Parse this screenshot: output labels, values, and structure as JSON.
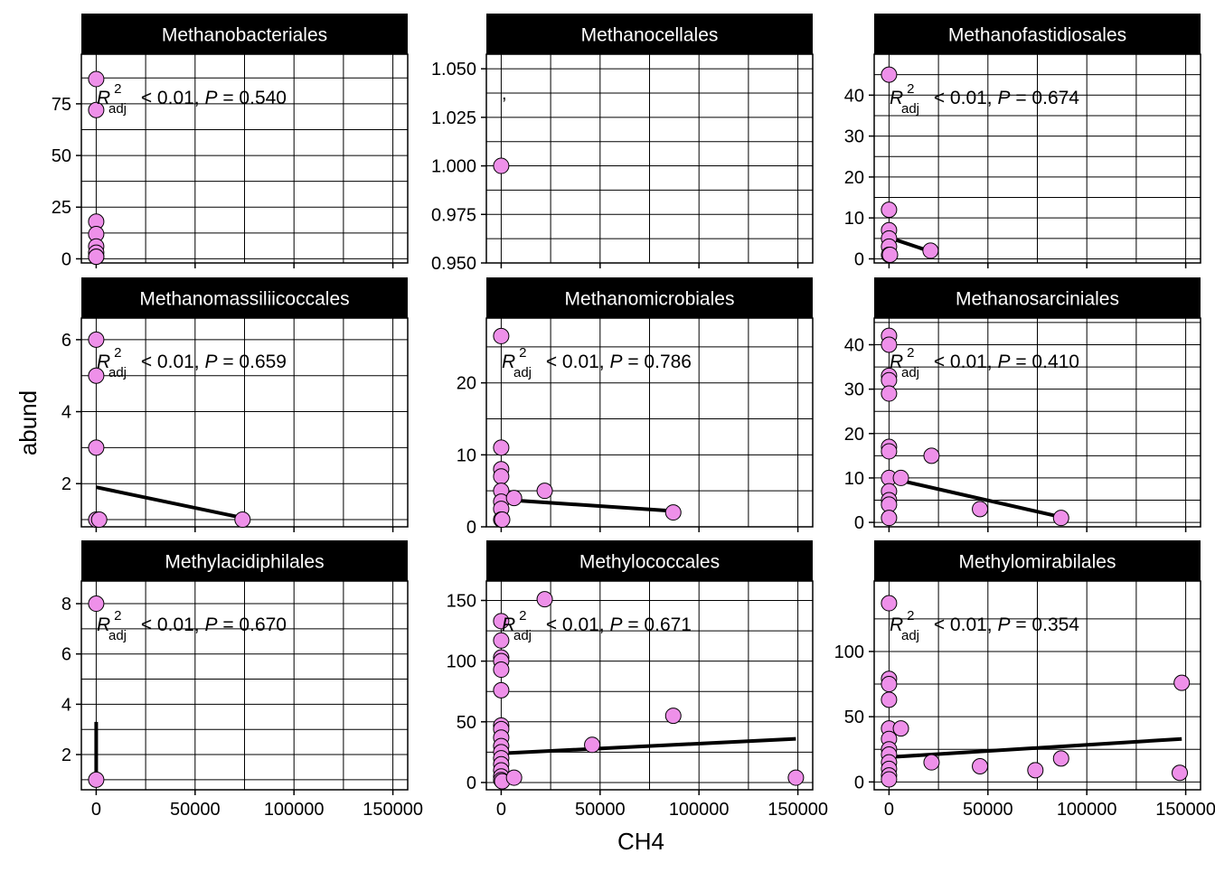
{
  "xlabel": "CH4",
  "ylabel": "abund",
  "colors": {
    "point_fill": "#EE90E9",
    "point_stroke": "#000000",
    "strip_bg": "#000000",
    "strip_text": "#FFFFFF",
    "line": "#000000",
    "grid": "#000000"
  },
  "chart_data": [
    {
      "type": "scatter",
      "title": "Methanobacteriales",
      "annotation": {
        "r2": "< 0.01,",
        "p_label": "P",
        "p_value": "= 0.540"
      },
      "xlim": [
        -7500,
        157500
      ],
      "ylim": [
        -2,
        99
      ],
      "xticks": [
        0,
        50000,
        100000,
        150000
      ],
      "xticklabels": [
        "0",
        "50000",
        "100000",
        "150000"
      ],
      "yticks": [
        0,
        25,
        50,
        75
      ],
      "yticklabels": [
        "0",
        "25",
        "50",
        "75"
      ],
      "points": [
        [
          0,
          87
        ],
        [
          0,
          72
        ],
        [
          0,
          18
        ],
        [
          0,
          12
        ],
        [
          0,
          6
        ],
        [
          0,
          3
        ],
        [
          0,
          1
        ],
        [
          0,
          1
        ]
      ],
      "fit": [
        [
          0,
          18
        ],
        [
          0,
          3
        ]
      ]
    },
    {
      "type": "scatter",
      "title": "Methanocellales",
      "annotation": {
        "r2": "",
        "p_label": "",
        "p_value": "",
        "mark": ","
      },
      "xlim": [
        -7500,
        157500
      ],
      "ylim": [
        0.95,
        1.0575
      ],
      "xticks": [
        0,
        50000,
        100000,
        150000
      ],
      "xticklabels": [
        "0",
        "50000",
        "100000",
        "150000"
      ],
      "yticks": [
        0.95,
        0.975,
        1.0,
        1.025,
        1.05
      ],
      "yticklabels": [
        "0.950",
        "0.975",
        "1.000",
        "1.025",
        "1.050"
      ],
      "points": [
        [
          0,
          1.0
        ]
      ],
      "fit": []
    },
    {
      "type": "scatter",
      "title": "Methanofastidiosales",
      "annotation": {
        "r2": "< 0.01,",
        "p_label": "P",
        "p_value": "= 0.674"
      },
      "xlim": [
        -7500,
        157500
      ],
      "ylim": [
        -1,
        50
      ],
      "xticks": [
        0,
        50000,
        100000,
        150000
      ],
      "xticklabels": [
        "0",
        "50000",
        "100000",
        "150000"
      ],
      "yticks": [
        0,
        10,
        20,
        30,
        40
      ],
      "yticklabels": [
        "0",
        "10",
        "20",
        "30",
        "40"
      ],
      "points": [
        [
          0,
          45
        ],
        [
          0,
          12
        ],
        [
          0,
          7
        ],
        [
          0,
          5
        ],
        [
          0,
          3
        ],
        [
          0,
          1
        ],
        [
          500,
          1
        ],
        [
          21000,
          2
        ]
      ],
      "fit": [
        [
          0,
          5.2
        ],
        [
          21000,
          1.8
        ]
      ]
    },
    {
      "type": "scatter",
      "title": "Methanomassiliicoccales",
      "annotation": {
        "r2": "< 0.01,",
        "p_label": "P",
        "p_value": "= 0.659"
      },
      "xlim": [
        -7500,
        157500
      ],
      "ylim": [
        0.8,
        6.6
      ],
      "xticks": [
        0,
        50000,
        100000,
        150000
      ],
      "xticklabels": [
        "0",
        "50000",
        "100000",
        "150000"
      ],
      "yticks": [
        2,
        4,
        6
      ],
      "yticklabels": [
        "2",
        "4",
        "6"
      ],
      "points": [
        [
          0,
          6
        ],
        [
          0,
          5
        ],
        [
          0,
          3
        ],
        [
          0,
          1
        ],
        [
          1500,
          1
        ],
        [
          74000,
          1
        ]
      ],
      "fit": [
        [
          0,
          1.9
        ],
        [
          74000,
          1.05
        ]
      ]
    },
    {
      "type": "scatter",
      "title": "Methanomicrobiales",
      "annotation": {
        "r2": "< 0.01,",
        "p_label": "P",
        "p_value": "= 0.786"
      },
      "xlim": [
        -7500,
        157500
      ],
      "ylim": [
        0,
        29
      ],
      "xticks": [
        0,
        50000,
        100000,
        150000
      ],
      "xticklabels": [
        "0",
        "50000",
        "100000",
        "150000"
      ],
      "yticks": [
        0,
        10,
        20
      ],
      "yticklabels": [
        "0",
        "10",
        "20"
      ],
      "points": [
        [
          0,
          26.5
        ],
        [
          0,
          11
        ],
        [
          0,
          8
        ],
        [
          0,
          7
        ],
        [
          0,
          5
        ],
        [
          0,
          3.5
        ],
        [
          0,
          2.5
        ],
        [
          0,
          1
        ],
        [
          500,
          1
        ],
        [
          6500,
          4
        ],
        [
          22000,
          5
        ],
        [
          87000,
          2
        ]
      ],
      "fit": [
        [
          0,
          3.8
        ],
        [
          87000,
          2.2
        ]
      ]
    },
    {
      "type": "scatter",
      "title": "Methanosarciniales",
      "annotation": {
        "r2": "< 0.01,",
        "p_label": "P",
        "p_value": "= 0.410"
      },
      "xlim": [
        -7500,
        157500
      ],
      "ylim": [
        -1,
        46
      ],
      "xticks": [
        0,
        50000,
        100000,
        150000
      ],
      "xticklabels": [
        "0",
        "50000",
        "100000",
        "150000"
      ],
      "yticks": [
        0,
        10,
        20,
        30,
        40
      ],
      "yticklabels": [
        "0",
        "10",
        "20",
        "30",
        "40"
      ],
      "points": [
        [
          0,
          42
        ],
        [
          0,
          40
        ],
        [
          0,
          33
        ],
        [
          0,
          32
        ],
        [
          0,
          29
        ],
        [
          0,
          17
        ],
        [
          0,
          16
        ],
        [
          0,
          10
        ],
        [
          0,
          7
        ],
        [
          0,
          5
        ],
        [
          0,
          4
        ],
        [
          0,
          1
        ],
        [
          6000,
          10
        ],
        [
          21500,
          15
        ],
        [
          46000,
          3
        ],
        [
          87000,
          1
        ]
      ],
      "fit": [
        [
          0,
          10
        ],
        [
          87000,
          1.2
        ]
      ]
    },
    {
      "type": "scatter",
      "title": "Methylacidiphilales",
      "annotation": {
        "r2": "< 0.01,",
        "p_label": "P",
        "p_value": "= 0.670"
      },
      "xlim": [
        -7500,
        157500
      ],
      "ylim": [
        0.6,
        8.9
      ],
      "xticks": [
        0,
        50000,
        100000,
        150000
      ],
      "xticklabels": [
        "0",
        "50000",
        "100000",
        "150000"
      ],
      "yticks": [
        2,
        4,
        6,
        8
      ],
      "yticklabels": [
        "2",
        "4",
        "6",
        "8"
      ],
      "points": [
        [
          0,
          8
        ],
        [
          0,
          1
        ]
      ],
      "fit": [
        [
          0,
          3.3
        ],
        [
          0,
          1
        ]
      ]
    },
    {
      "type": "scatter",
      "title": "Methylococcales",
      "annotation": {
        "r2": "< 0.01,",
        "p_label": "P",
        "p_value": "= 0.671"
      },
      "xlim": [
        -7500,
        157500
      ],
      "ylim": [
        -6,
        166
      ],
      "xticks": [
        0,
        50000,
        100000,
        150000
      ],
      "xticklabels": [
        "0",
        "50000",
        "100000",
        "150000"
      ],
      "yticks": [
        0,
        50,
        100,
        150
      ],
      "yticklabels": [
        "0",
        "50",
        "100",
        "150"
      ],
      "points": [
        [
          0,
          133
        ],
        [
          0,
          117
        ],
        [
          0,
          103
        ],
        [
          0,
          100
        ],
        [
          0,
          93
        ],
        [
          0,
          76
        ],
        [
          0,
          47
        ],
        [
          0,
          44
        ],
        [
          0,
          37
        ],
        [
          0,
          30
        ],
        [
          0,
          25
        ],
        [
          0,
          20
        ],
        [
          0,
          15
        ],
        [
          0,
          10
        ],
        [
          0,
          5
        ],
        [
          0,
          2
        ],
        [
          500,
          1
        ],
        [
          6500,
          4
        ],
        [
          22000,
          151
        ],
        [
          46000,
          31
        ],
        [
          87000,
          55
        ],
        [
          149000,
          4
        ]
      ],
      "fit": [
        [
          0,
          24
        ],
        [
          149000,
          36
        ]
      ]
    },
    {
      "type": "scatter",
      "title": "Methylomirabilales",
      "annotation": {
        "r2": "< 0.01,",
        "p_label": "P",
        "p_value": "= 0.354"
      },
      "xlim": [
        -7500,
        157500
      ],
      "ylim": [
        -6,
        154
      ],
      "xticks": [
        0,
        50000,
        100000,
        150000
      ],
      "xticklabels": [
        "0",
        "50000",
        "100000",
        "150000"
      ],
      "yticks": [
        0,
        50,
        100
      ],
      "yticklabels": [
        "0",
        "50",
        "100"
      ],
      "points": [
        [
          0,
          137
        ],
        [
          0,
          79
        ],
        [
          0,
          75
        ],
        [
          0,
          63
        ],
        [
          0,
          41
        ],
        [
          0,
          33
        ],
        [
          0,
          25
        ],
        [
          0,
          21
        ],
        [
          0,
          15
        ],
        [
          0,
          10
        ],
        [
          0,
          5
        ],
        [
          0,
          2
        ],
        [
          6000,
          41
        ],
        [
          21500,
          15
        ],
        [
          46000,
          12
        ],
        [
          74000,
          9
        ],
        [
          87000,
          18
        ],
        [
          147000,
          7
        ],
        [
          148000,
          76
        ]
      ],
      "fit": [
        [
          0,
          19
        ],
        [
          148000,
          33
        ]
      ]
    }
  ]
}
